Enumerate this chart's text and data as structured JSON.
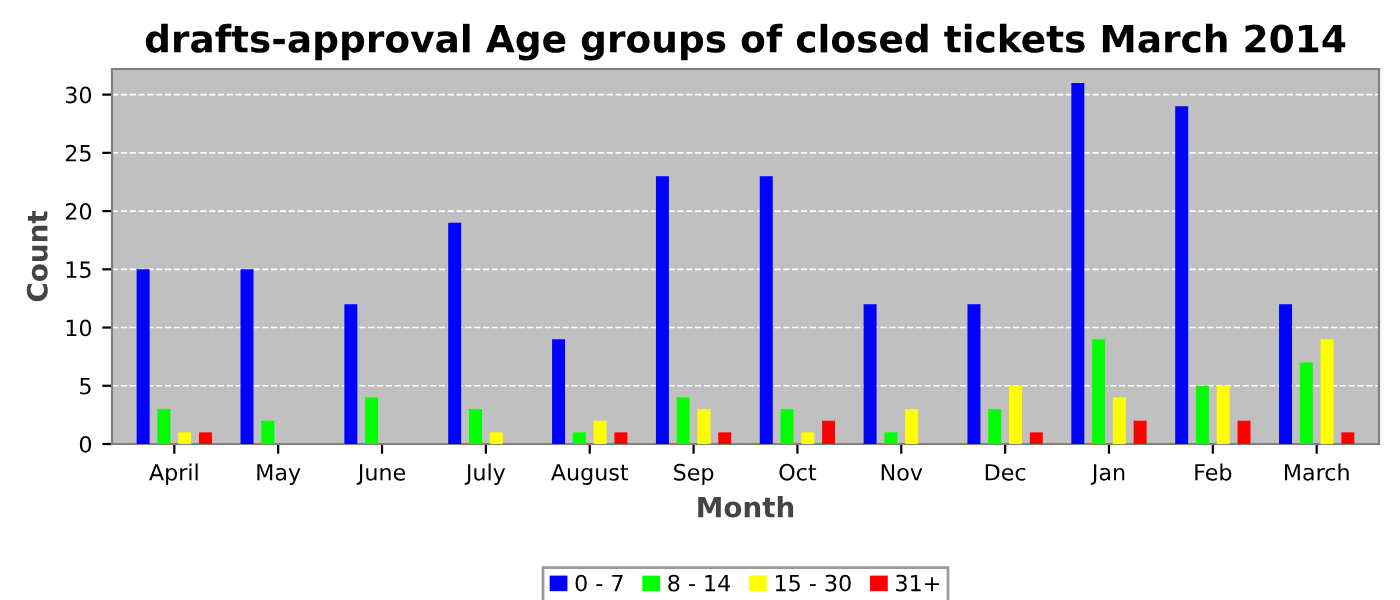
{
  "chart_data": {
    "type": "bar",
    "title": "drafts-approval Age groups of closed tickets March 2014",
    "xlabel": "Month",
    "ylabel": "Count",
    "categories": [
      "April",
      "May",
      "June",
      "July",
      "August",
      "Sep",
      "Oct",
      "Nov",
      "Dec",
      "Jan",
      "Feb",
      "March"
    ],
    "series": [
      {
        "name": "0 - 7",
        "color": "#0000ff",
        "values": [
          15,
          15,
          12,
          19,
          9,
          23,
          23,
          12,
          12,
          31,
          29,
          12
        ]
      },
      {
        "name": "8 - 14",
        "color": "#00ff00",
        "values": [
          3,
          2,
          4,
          3,
          1,
          4,
          3,
          1,
          3,
          9,
          5,
          7
        ]
      },
      {
        "name": "15 - 30",
        "color": "#ffff00",
        "values": [
          1,
          0,
          0,
          1,
          2,
          3,
          1,
          3,
          5,
          4,
          5,
          9
        ]
      },
      {
        "name": "31+",
        "color": "#ff0000",
        "values": [
          1,
          0,
          0,
          0,
          1,
          1,
          2,
          0,
          1,
          2,
          2,
          1
        ]
      }
    ],
    "ylim": [
      0,
      32.2
    ],
    "yticks": [
      0,
      5,
      10,
      15,
      20,
      25,
      30
    ],
    "grid": "y",
    "legend": "bottom"
  }
}
